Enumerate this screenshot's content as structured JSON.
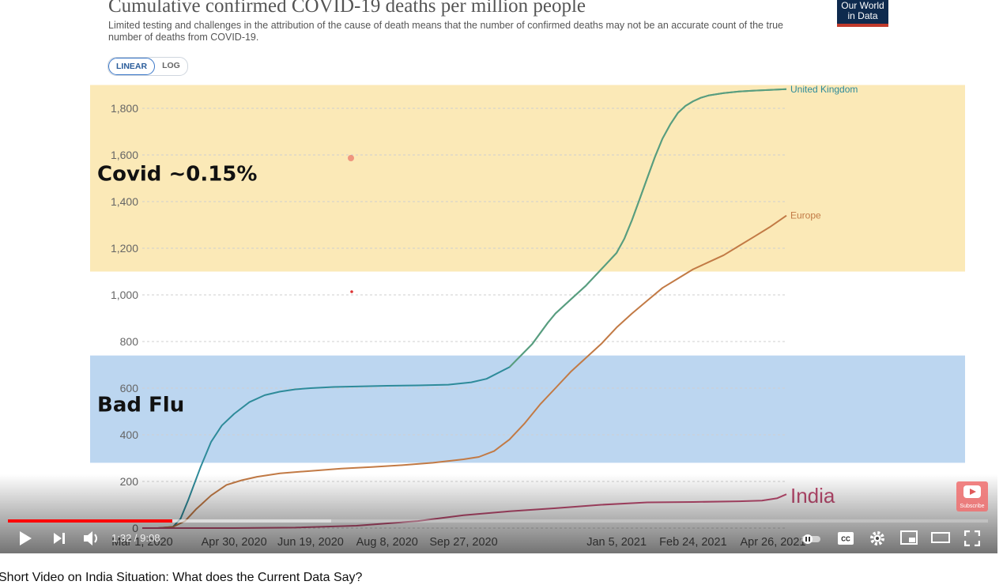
{
  "header": {
    "title": "Cumulative confirmed COVID-19 deaths per million people",
    "subtitle": "Limited testing and challenges in the attribution of the cause of death means that the number of confirmed deaths may not be an accurate count of the true number of deaths from COVID-19.",
    "logo_line1": "Our World",
    "logo_line2": "in Data"
  },
  "scale_toggle": {
    "linear_label": "LINEAR",
    "log_label": "LOG",
    "selected": "LINEAR"
  },
  "chart_data": {
    "type": "line",
    "title": "Cumulative confirmed COVID-19 deaths per million people",
    "ylabel": "",
    "xlabel": "",
    "ylim": [
      0,
      1900
    ],
    "yticks": [
      0,
      200,
      400,
      600,
      800,
      1000,
      1200,
      1400,
      1600,
      1800
    ],
    "ytick_labels": [
      "0",
      "200",
      "400",
      "600",
      "800",
      "1,000",
      "1,200",
      "1,400",
      "1,600",
      "1,800"
    ],
    "x_start": "2020-03-01",
    "x_end": "2021-04-26",
    "xticks": [
      {
        "label": "Mar 1, 2020",
        "day": 0
      },
      {
        "label": "Apr 30, 2020",
        "day": 60
      },
      {
        "label": "Jun 19, 2020",
        "day": 110
      },
      {
        "label": "Aug 8, 2020",
        "day": 160
      },
      {
        "label": "Sep 27, 2020",
        "day": 210
      },
      {
        "label": "Jan 5, 2021",
        "day": 310
      },
      {
        "label": "Feb 24, 2021",
        "day": 360
      },
      {
        "label": "Apr 26, 2021",
        "day": 421
      }
    ],
    "bands": [
      {
        "label": "Covid ~0.15%",
        "from": 1100,
        "to": 1900,
        "color": "#fbe9b7"
      },
      {
        "label": "Bad Flu",
        "from": 280,
        "to": 740,
        "color": "#bcd6f0"
      }
    ],
    "series": [
      {
        "name": "United Kingdom",
        "color": "#2e8b9a",
        "color_late": "#5ea07a",
        "x": [
          0,
          10,
          20,
          25,
          30,
          38,
          45,
          52,
          60,
          70,
          80,
          90,
          100,
          110,
          125,
          140,
          160,
          180,
          200,
          215,
          225,
          240,
          255,
          265,
          270,
          280,
          290,
          300,
          310,
          315,
          320,
          325,
          330,
          335,
          340,
          345,
          350,
          355,
          360,
          365,
          370,
          380,
          390,
          400,
          410,
          421
        ],
        "values": [
          0,
          0,
          5,
          40,
          120,
          260,
          370,
          440,
          490,
          540,
          570,
          585,
          595,
          600,
          605,
          607,
          610,
          612,
          615,
          625,
          640,
          690,
          790,
          880,
          920,
          980,
          1040,
          1110,
          1180,
          1240,
          1320,
          1410,
          1500,
          1590,
          1670,
          1730,
          1780,
          1810,
          1830,
          1845,
          1855,
          1865,
          1872,
          1876,
          1879,
          1882
        ]
      },
      {
        "name": "Europe",
        "color": "#c27a45",
        "x": [
          0,
          10,
          20,
          28,
          35,
          45,
          55,
          65,
          75,
          90,
          110,
          130,
          150,
          170,
          190,
          210,
          220,
          230,
          240,
          250,
          260,
          270,
          280,
          290,
          300,
          310,
          320,
          330,
          340,
          350,
          360,
          370,
          380,
          390,
          400,
          410,
          421
        ],
        "values": [
          0,
          0,
          5,
          30,
          80,
          140,
          185,
          205,
          220,
          235,
          245,
          255,
          262,
          270,
          280,
          295,
          305,
          330,
          380,
          450,
          530,
          600,
          670,
          730,
          790,
          860,
          920,
          975,
          1030,
          1070,
          1110,
          1140,
          1170,
          1210,
          1250,
          1290,
          1340
        ]
      },
      {
        "name": "India",
        "color": "#c14d73",
        "x": [
          0,
          60,
          100,
          140,
          180,
          210,
          240,
          270,
          300,
          330,
          360,
          390,
          405,
          415,
          421
        ],
        "values": [
          0,
          0,
          2,
          10,
          30,
          55,
          72,
          85,
          100,
          110,
          112,
          115,
          118,
          128,
          145
        ]
      }
    ],
    "annotations": [
      {
        "text": "Covid ~0.15%",
        "y": 1490
      },
      {
        "text": "Bad Flu",
        "y": 500
      }
    ],
    "cursor_marker_y": 1000
  },
  "player": {
    "progress": 0.168,
    "buffered": 0.33,
    "time_current": "1:32",
    "time_total": "9:08",
    "time_display": "1:32 / 9:08",
    "subscribe_label": "Subscribe",
    "accent_color": "#ff0000"
  },
  "video": {
    "title": "Short Video on India Situation: What does the Current Data Say?"
  }
}
